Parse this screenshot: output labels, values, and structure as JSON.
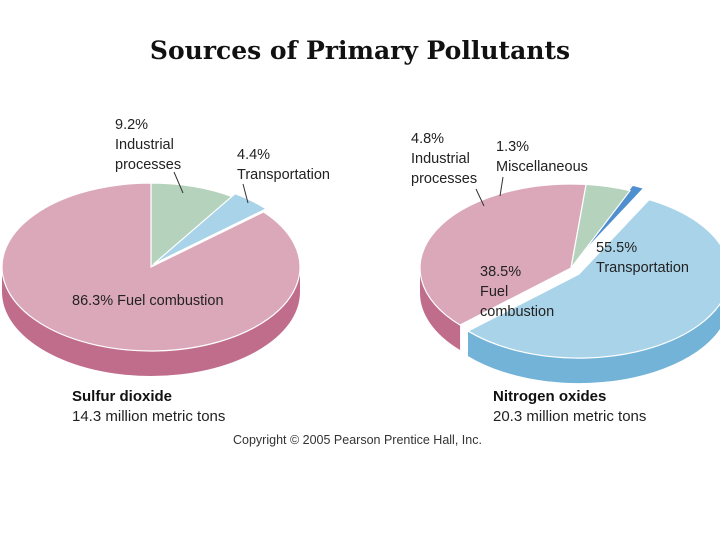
{
  "title": "Sources of Primary Pollutants",
  "copyright": "Copyright © 2005 Pearson Prentice Hall, Inc.",
  "colors": {
    "fuel_combustion": "#dba8b9",
    "fuel_combustion_side": "#c06d8c",
    "industrial_processes": "#b5d2bd",
    "industrial_processes_side": "#8fb39a",
    "transportation": "#a9d3e9",
    "transportation_side": "#74b3d8",
    "miscellaneous": "#4f8fd0",
    "miscellaneous_side": "#2f6fb2"
  },
  "chart_data": [
    {
      "type": "pie",
      "caption_title": "Sulfur dioxide",
      "caption_subtitle": "14.3 million metric tons",
      "slices": [
        {
          "name": "Industrial processes",
          "pct_label": "9.2%",
          "value": 9.2,
          "color_key": "industrial_processes",
          "label_lines": [
            "9.2%",
            "Industrial",
            "processes"
          ]
        },
        {
          "name": "Transportation",
          "pct_label": "4.4%",
          "value": 4.4,
          "color_key": "transportation",
          "label_lines": [
            "4.4%",
            "Transportation"
          ]
        },
        {
          "name": "Fuel combustion",
          "pct_label": "86.3%",
          "value": 86.3,
          "color_key": "fuel_combustion",
          "label_lines": [
            "86.3% Fuel combustion"
          ]
        }
      ]
    },
    {
      "type": "pie",
      "caption_title": "Nitrogen oxides",
      "caption_subtitle": "20.3 million metric tons",
      "slices": [
        {
          "name": "Miscellaneous",
          "pct_label": "1.3%",
          "value": 1.3,
          "color_key": "miscellaneous",
          "label_lines": [
            "1.3%",
            "Miscellaneous"
          ]
        },
        {
          "name": "Transportation",
          "pct_label": "55.5%",
          "value": 55.5,
          "color_key": "transportation",
          "label_lines": [
            "55.5%",
            "Transportation"
          ]
        },
        {
          "name": "Fuel combustion",
          "pct_label": "38.5%",
          "value": 38.5,
          "color_key": "fuel_combustion",
          "label_lines": [
            "38.5%",
            "Fuel",
            "combustion"
          ]
        },
        {
          "name": "Industrial processes",
          "pct_label": "4.8%",
          "value": 4.8,
          "color_key": "industrial_processes",
          "label_lines": [
            "4.8%",
            "Industrial",
            "processes"
          ]
        }
      ]
    }
  ]
}
